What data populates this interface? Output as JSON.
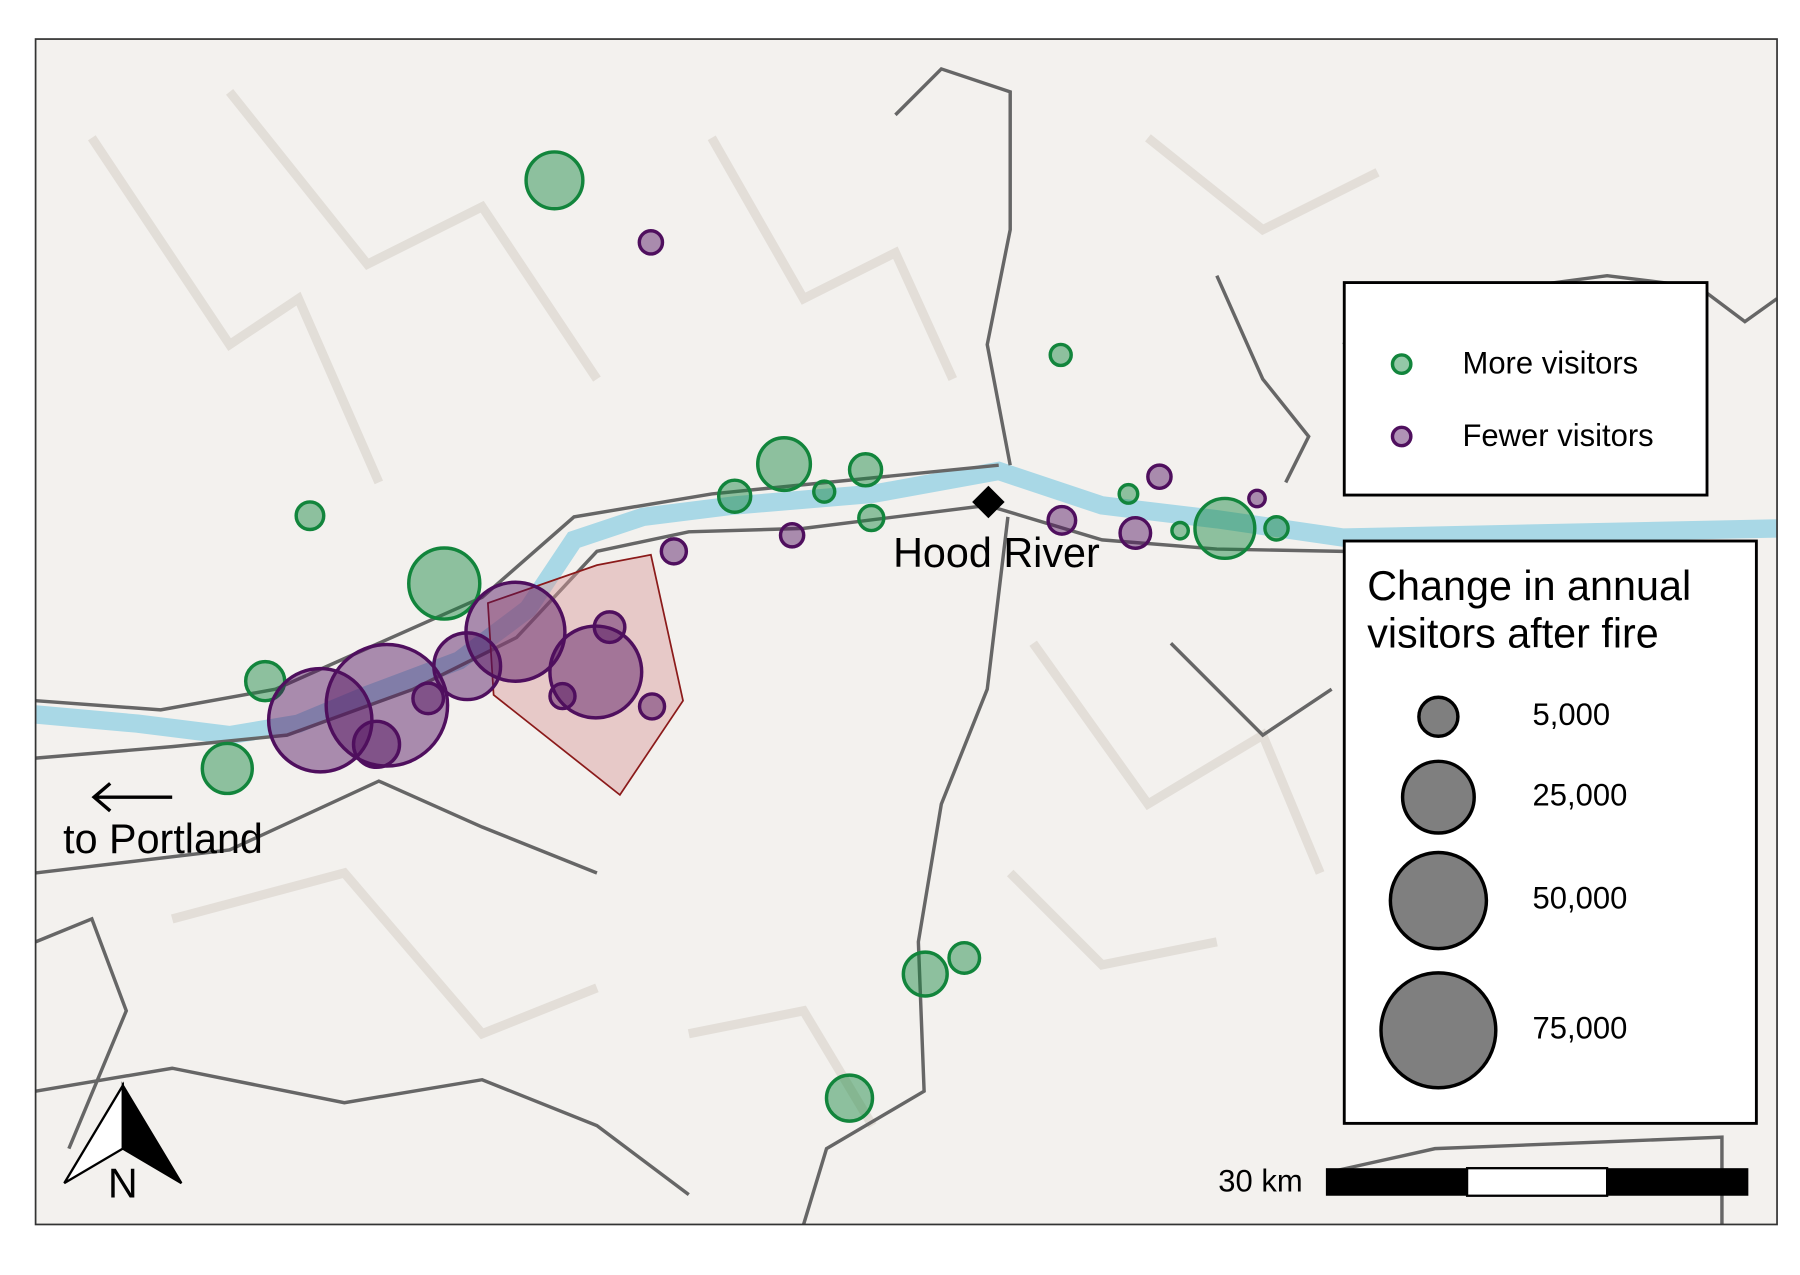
{
  "map": {
    "labels": {
      "city": "Hood River",
      "direction": "to Portland",
      "north": "N",
      "scale_bar": "30 km"
    },
    "series": [
      {
        "name": "More visitors",
        "color": "#12853c",
        "values": [
          14000,
          500,
          1600,
          11500,
          2700,
          2700,
          500,
          1100,
          24500,
          5000,
          10000,
          250,
          100,
          16000,
          800,
          2300,
          7000,
          8000
        ]
      },
      {
        "name": "Fewer visitors",
        "color": "#4f0f5e",
        "values": [
          800,
          1100,
          800,
          1600,
          2300,
          800,
          100,
          53500,
          45000,
          2300,
          21000,
          85000,
          59000,
          8000,
          2300,
          1100,
          1100
        ]
      }
    ],
    "size_legend": {
      "title_lines": [
        "Change in annual",
        "visitors after fire"
      ],
      "values": [
        {
          "value": 5000,
          "label": "5,000"
        },
        {
          "value": 25000,
          "label": "25,000"
        },
        {
          "value": 50000,
          "label": "50,000"
        },
        {
          "value": 75000,
          "label": "75,000"
        }
      ]
    }
  }
}
